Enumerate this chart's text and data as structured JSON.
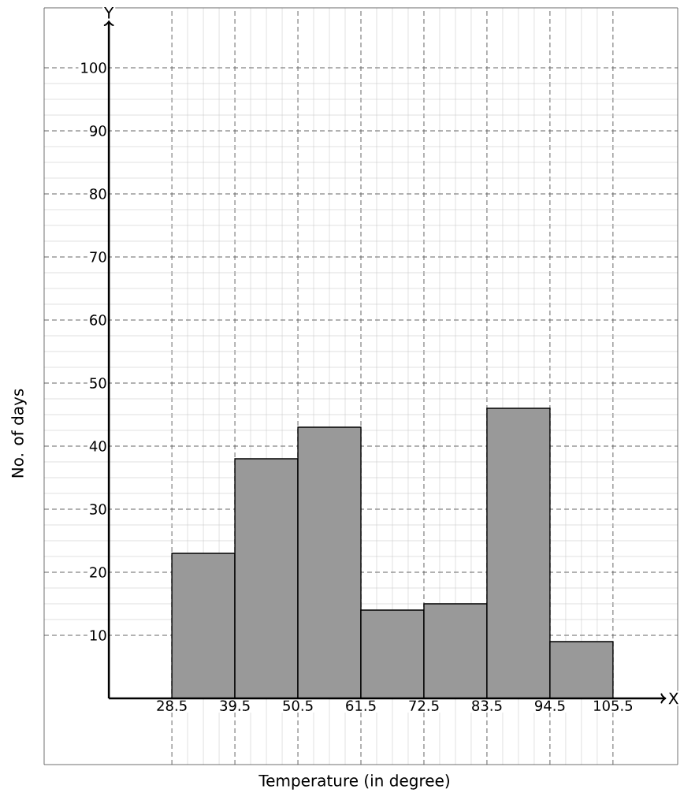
{
  "chart_data": {
    "type": "histogram",
    "xlabel": "Temperature (in degree)",
    "ylabel": "No. of days",
    "bins": [
      28.5,
      39.5,
      50.5,
      61.5,
      72.5,
      83.5,
      94.5,
      105.5
    ],
    "values": [
      23,
      38,
      43,
      14,
      15,
      46,
      9
    ],
    "color": "#999999",
    "xlim": [
      6.2,
      116.8
    ],
    "ylim": [
      -10.5,
      109.5
    ],
    "xticks": [
      28.5,
      39.5,
      50.5,
      61.5,
      72.5,
      83.5,
      94.5,
      105.5
    ],
    "yticks": [
      10,
      20,
      30,
      40,
      50,
      60,
      70,
      80,
      90,
      100
    ],
    "grid": true,
    "annotations": [
      "X",
      "Y"
    ]
  }
}
